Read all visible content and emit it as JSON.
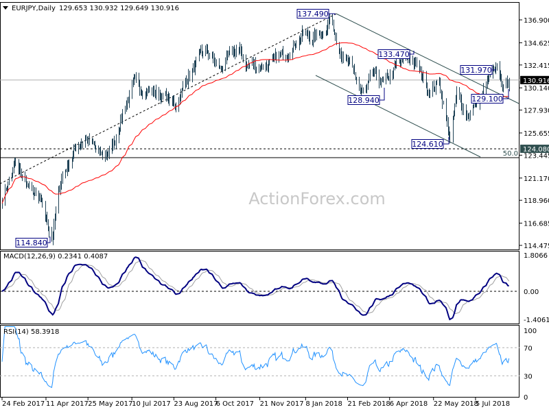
{
  "header": {
    "symbol": "EURJPY,Daily",
    "ohlc": "129.653 130.932 129.649 130.916"
  },
  "watermark": "ActionForex.com",
  "colors": {
    "bars": "#1f4256",
    "ma": "#ff0000",
    "macd": "#000080",
    "signal": "#a0a0a0",
    "rsi": "#1e90ff",
    "label_border": "#000080",
    "current_price_bg": "#000000",
    "level_bg": "#2f4f4f"
  },
  "chart_data": [
    {
      "type": "ohlc",
      "title": "EURJPY,Daily",
      "ylim": [
        114.475,
        136.9
      ],
      "y_ticks": [
        "136.900",
        "134.625",
        "132.415",
        "130.140",
        "127.930",
        "125.655",
        "123.445",
        "121.170",
        "118.960",
        "116.685",
        "114.475"
      ],
      "x_ticks": [
        "24 Feb 2017",
        "11 Apr 2017",
        "25 May 2017",
        "10 Jul 2017",
        "23 Aug 2017",
        "6 Oct 2017",
        "21 Nov 2017",
        "8 Jan 2018",
        "21 Feb 2018",
        "6 Apr 2018",
        "22 May 2018",
        "5 Jul 2018"
      ],
      "x_tick_dates": [
        "2017-02-24",
        "2017-04-11",
        "2017-05-25",
        "2017-07-10",
        "2017-08-23",
        "2017-10-06",
        "2017-11-21",
        "2018-01-08",
        "2018-02-21",
        "2018-04-06",
        "2018-05-22",
        "2018-07-05"
      ],
      "close_path": [
        [
          "2017-02-24",
          119.1
        ],
        [
          "2017-03-09",
          122.5
        ],
        [
          "2017-03-22",
          120.5
        ],
        [
          "2017-04-06",
          118.4
        ],
        [
          "2017-04-17",
          115.3
        ],
        [
          "2017-04-20",
          117.0
        ],
        [
          "2017-04-27",
          121.2
        ],
        [
          "2017-05-12",
          124.2
        ],
        [
          "2017-05-22",
          125.2
        ],
        [
          "2017-06-09",
          123.2
        ],
        [
          "2017-06-20",
          124.2
        ],
        [
          "2017-07-01",
          128.0
        ],
        [
          "2017-07-12",
          130.4
        ],
        [
          "2017-07-26",
          130.0
        ],
        [
          "2017-08-13",
          129.3
        ],
        [
          "2017-08-24",
          128.3
        ],
        [
          "2017-09-07",
          131.4
        ],
        [
          "2017-09-25",
          133.8
        ],
        [
          "2017-10-10",
          132.0
        ],
        [
          "2017-10-28",
          134.1
        ],
        [
          "2017-11-07",
          132.4
        ],
        [
          "2017-11-25",
          132.4
        ],
        [
          "2017-12-06",
          132.7
        ],
        [
          "2017-12-20",
          133.8
        ],
        [
          "2018-01-04",
          135.5
        ],
        [
          "2018-01-15",
          135.1
        ],
        [
          "2018-01-26",
          135.8
        ],
        [
          "2018-02-02",
          137.0
        ],
        [
          "2018-02-16",
          133.4
        ],
        [
          "2018-02-27",
          131.4
        ],
        [
          "2018-03-10",
          129.3
        ],
        [
          "2018-03-20",
          131.4
        ],
        [
          "2018-03-31",
          130.4
        ],
        [
          "2018-04-14",
          132.4
        ],
        [
          "2018-04-27",
          133.2
        ],
        [
          "2018-05-06",
          132.0
        ],
        [
          "2018-05-17",
          130.0
        ],
        [
          "2018-05-28",
          130.7
        ],
        [
          "2018-06-08",
          125.0
        ],
        [
          "2018-06-15",
          129.3
        ],
        [
          "2018-06-26",
          127.6
        ],
        [
          "2018-07-10",
          129.0
        ],
        [
          "2018-07-21",
          131.4
        ],
        [
          "2018-07-28",
          131.6
        ],
        [
          "2018-08-04",
          130.0
        ],
        [
          "2018-08-09",
          130.916
        ]
      ],
      "moving_average": "red line",
      "annotations": [
        {
          "text": "137.490",
          "price": 137.49
        },
        {
          "text": "133.470",
          "price": 133.47
        },
        {
          "text": "131.970",
          "price": 131.97
        },
        {
          "text": "128.940",
          "price": 128.94
        },
        {
          "text": "129.100",
          "price": 129.1
        },
        {
          "text": "124.610",
          "price": 124.61
        },
        {
          "text": "114.840",
          "price": 114.84
        }
      ],
      "levels": {
        "current": "130.916",
        "support": "124.080",
        "fib_label": "50.0",
        "fib_price": 123.2
      }
    },
    {
      "type": "line",
      "title": "MACD(12,26,9) 0.2341 0.4087",
      "ylim": [
        -1.4061,
        1.8066
      ],
      "y_ticks": [
        "1.8066",
        "0.00",
        "-1.4061"
      ],
      "series": [
        {
          "name": "MACD"
        },
        {
          "name": "Signal"
        }
      ]
    },
    {
      "type": "line",
      "title": "RSI(14) 58.3918",
      "ylim": [
        0,
        100
      ],
      "y_ticks": [
        "100",
        "70",
        "30",
        "0"
      ],
      "levels": [
        70,
        30
      ]
    }
  ]
}
